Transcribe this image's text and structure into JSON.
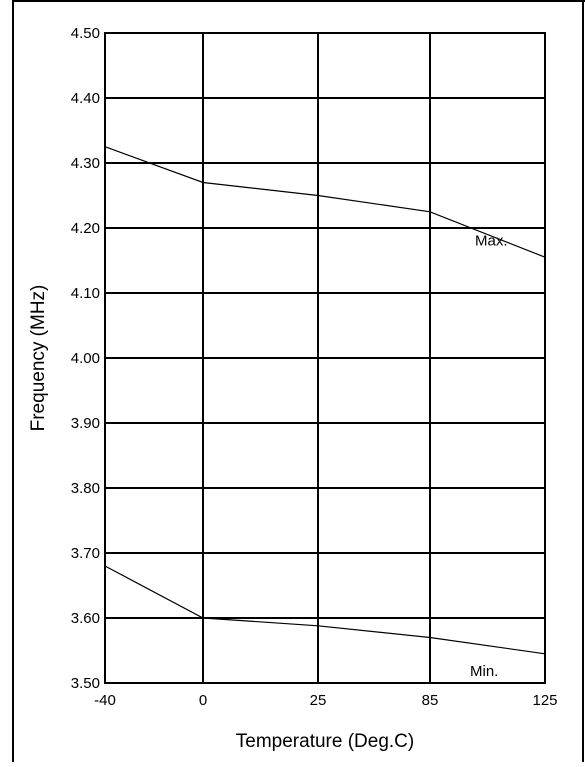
{
  "chart_data": {
    "type": "line",
    "title": "",
    "xlabel": "Temperature (Deg.C)",
    "ylabel": "Frequency (MHz)",
    "categories": [
      "-40",
      "0",
      "25",
      "85",
      "125"
    ],
    "ylim": [
      3.5,
      4.5
    ],
    "yticks": [
      "3.50",
      "3.60",
      "3.70",
      "3.80",
      "3.90",
      "4.00",
      "4.10",
      "4.20",
      "4.30",
      "4.40",
      "4.50"
    ],
    "grid": true,
    "legend": "none",
    "series": [
      {
        "name": "Max.",
        "values": [
          4.325,
          4.27,
          4.25,
          4.225,
          4.155
        ]
      },
      {
        "name": "Min.",
        "values": [
          3.68,
          3.6,
          3.588,
          3.57,
          3.545
        ]
      }
    ]
  }
}
